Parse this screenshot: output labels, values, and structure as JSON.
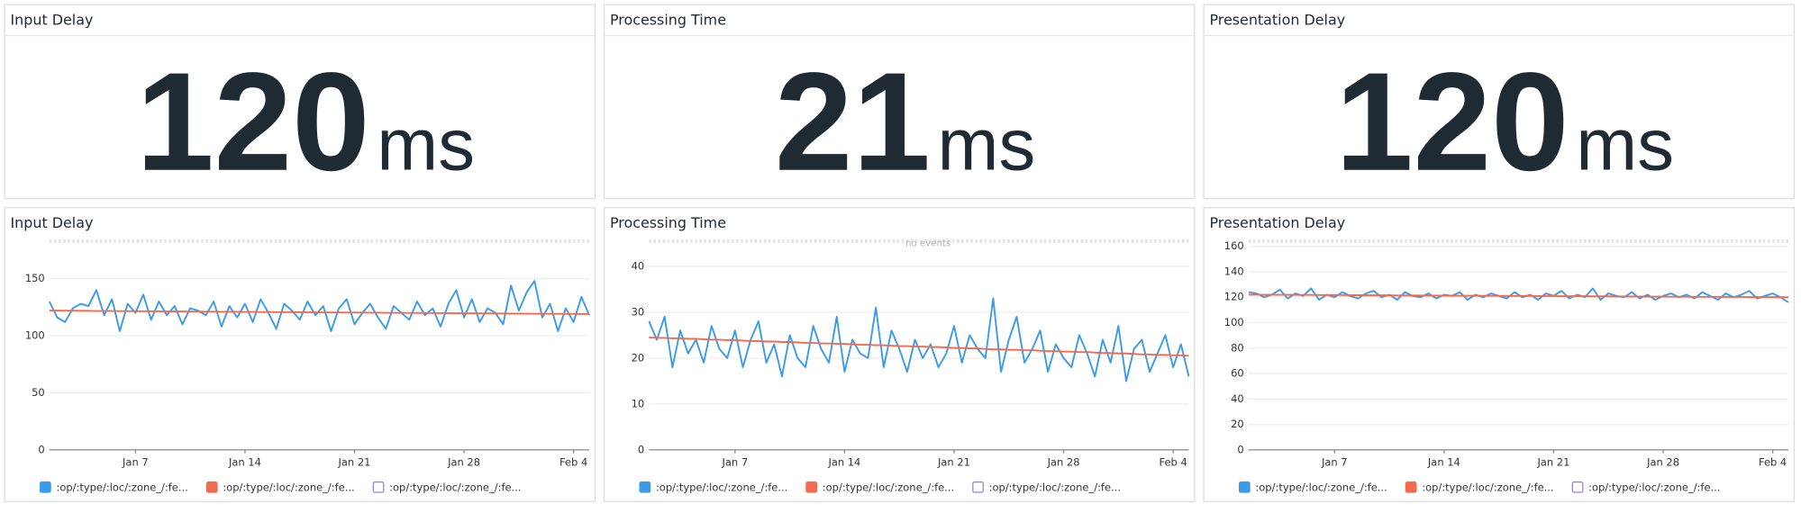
{
  "stat_widgets": [
    {
      "title": "Input Delay",
      "value": 120,
      "unit": "ms"
    },
    {
      "title": "Processing Time",
      "value": 21,
      "unit": "ms"
    },
    {
      "title": "Presentation Delay",
      "value": 120,
      "unit": "ms"
    }
  ],
  "chart_data": [
    {
      "type": "line",
      "title": "Input Delay",
      "categories": [
        null,
        null,
        null,
        null,
        null,
        null,
        null,
        null,
        null,
        null,
        null,
        "Jan 7",
        null,
        null,
        null,
        null,
        null,
        null,
        null,
        null,
        null,
        null,
        null,
        null,
        null,
        "Jan 14",
        null,
        null,
        null,
        null,
        null,
        null,
        null,
        null,
        null,
        null,
        null,
        null,
        null,
        "Jan 21",
        null,
        null,
        null,
        null,
        null,
        null,
        null,
        null,
        null,
        null,
        null,
        null,
        null,
        "Jan 28",
        null,
        null,
        null,
        null,
        null,
        null,
        null,
        null,
        null,
        null,
        null,
        null,
        null,
        "Feb 4",
        null,
        null
      ],
      "ylim": [
        0,
        185
      ],
      "yticks": [
        0,
        50,
        100,
        150
      ],
      "grid": true,
      "series": [
        {
          "name": ":op/:type/:loc/:zone_/:fe...",
          "color": "#3a9be8",
          "values": [
            130,
            116,
            112,
            124,
            128,
            126,
            140,
            118,
            132,
            104,
            128,
            120,
            136,
            114,
            130,
            118,
            126,
            110,
            124,
            122,
            118,
            130,
            108,
            126,
            116,
            128,
            112,
            132,
            120,
            106,
            128,
            122,
            114,
            130,
            118,
            126,
            104,
            124,
            132,
            110,
            120,
            128,
            116,
            106,
            126,
            120,
            114,
            130,
            118,
            124,
            108,
            128,
            140,
            116,
            132,
            112,
            124,
            120,
            110,
            144,
            122,
            138,
            148,
            116,
            128,
            104,
            124,
            112,
            134,
            118
          ]
        },
        {
          "name": ":op/:type/:loc/:zone_/:fe...",
          "color": "#f26b4f",
          "values": [
            122.0,
            122.0,
            121.9,
            121.9,
            121.8,
            121.8,
            121.7,
            121.7,
            121.7,
            121.6,
            121.6,
            121.5,
            121.5,
            121.4,
            121.4,
            121.3,
            121.3,
            121.3,
            121.2,
            121.2,
            121.1,
            121.1,
            121.0,
            121.0,
            121.0,
            120.9,
            120.9,
            120.8,
            120.8,
            120.7,
            120.7,
            120.7,
            120.6,
            120.6,
            120.5,
            120.5,
            120.4,
            120.4,
            120.3,
            120.3,
            120.3,
            120.2,
            120.2,
            120.1,
            120.1,
            120.0,
            120.0,
            120.0,
            119.9,
            119.9,
            119.8,
            119.8,
            119.7,
            119.7,
            119.7,
            119.6,
            119.6,
            119.5,
            119.5,
            119.4,
            119.4,
            119.3,
            119.3,
            119.3,
            119.2,
            119.2,
            119.1,
            119.1,
            119.0,
            119.0
          ]
        },
        {
          "name": ":op/:type/:loc/:zone_/:fe...",
          "color": "#9b7fe0",
          "values": [
            null,
            null,
            null,
            null,
            null,
            null,
            null,
            null,
            null,
            null,
            null,
            null,
            null,
            null,
            null,
            null,
            null,
            null,
            null,
            null,
            null,
            null,
            null,
            null,
            null,
            null,
            null,
            null,
            null,
            null,
            null,
            null,
            null,
            null,
            null,
            null,
            null,
            null,
            null,
            null,
            null,
            null,
            null,
            null,
            null,
            null,
            null,
            null,
            null,
            null,
            null,
            null,
            null,
            null,
            null,
            null,
            null,
            null,
            null,
            null,
            null,
            null,
            null,
            null,
            null,
            null,
            null,
            null,
            null,
            null
          ]
        }
      ]
    },
    {
      "type": "line",
      "title": "Processing Time",
      "annotation": "no events",
      "categories": [
        null,
        null,
        null,
        null,
        null,
        null,
        null,
        null,
        null,
        null,
        null,
        "Jan 7",
        null,
        null,
        null,
        null,
        null,
        null,
        null,
        null,
        null,
        null,
        null,
        null,
        null,
        "Jan 14",
        null,
        null,
        null,
        null,
        null,
        null,
        null,
        null,
        null,
        null,
        null,
        null,
        null,
        "Jan 21",
        null,
        null,
        null,
        null,
        null,
        null,
        null,
        null,
        null,
        null,
        null,
        null,
        null,
        "Jan 28",
        null,
        null,
        null,
        null,
        null,
        null,
        null,
        null,
        null,
        null,
        null,
        null,
        null,
        "Feb 4",
        null,
        null
      ],
      "ylim": [
        0,
        46
      ],
      "yticks": [
        0,
        10,
        20,
        30,
        40
      ],
      "grid": true,
      "series": [
        {
          "name": ":op/:type/:loc/:zone_/:fe...",
          "color": "#3a9be8",
          "values": [
            28,
            24,
            29,
            18,
            26,
            21,
            24,
            19,
            27,
            22,
            20,
            26,
            18,
            24,
            28,
            19,
            23,
            16,
            25,
            20,
            18,
            27,
            22,
            19,
            29,
            17,
            24,
            21,
            20,
            31,
            18,
            26,
            22,
            17,
            24,
            20,
            23,
            18,
            21,
            27,
            19,
            25,
            22,
            20,
            33,
            17,
            24,
            29,
            19,
            22,
            26,
            17,
            23,
            20,
            18,
            25,
            21,
            16,
            24,
            19,
            27,
            15,
            22,
            24,
            17,
            21,
            25,
            18,
            23,
            16
          ]
        },
        {
          "name": ":op/:type/:loc/:zone_/:fe...",
          "color": "#f26b4f",
          "values": [
            24.5,
            24.4,
            24.4,
            24.3,
            24.3,
            24.2,
            24.2,
            24.1,
            24.0,
            24.0,
            23.9,
            23.9,
            23.8,
            23.7,
            23.7,
            23.6,
            23.6,
            23.5,
            23.5,
            23.4,
            23.3,
            23.3,
            23.2,
            23.2,
            23.1,
            23.1,
            23.0,
            22.9,
            22.9,
            22.8,
            22.8,
            22.7,
            22.6,
            22.6,
            22.5,
            22.5,
            22.4,
            22.4,
            22.3,
            22.2,
            22.2,
            22.1,
            22.1,
            22.0,
            21.9,
            21.9,
            21.8,
            21.8,
            21.7,
            21.7,
            21.6,
            21.5,
            21.5,
            21.4,
            21.4,
            21.3,
            21.3,
            21.2,
            21.1,
            21.1,
            21.0,
            21.0,
            20.9,
            20.8,
            20.8,
            20.7,
            20.7,
            20.6,
            20.6,
            20.5
          ]
        },
        {
          "name": ":op/:type/:loc/:zone_/:fe...",
          "color": "#9b7fe0",
          "values": [
            null,
            null,
            null,
            null,
            null,
            null,
            null,
            null,
            null,
            null,
            null,
            null,
            null,
            null,
            null,
            null,
            null,
            null,
            null,
            null,
            null,
            null,
            null,
            null,
            null,
            null,
            null,
            null,
            null,
            null,
            null,
            null,
            null,
            null,
            null,
            null,
            null,
            null,
            null,
            null,
            null,
            null,
            null,
            null,
            null,
            null,
            null,
            null,
            null,
            null,
            null,
            null,
            null,
            null,
            null,
            null,
            null,
            null,
            null,
            null,
            null,
            null,
            null,
            null,
            null,
            null,
            null,
            null,
            null,
            null
          ]
        }
      ]
    },
    {
      "type": "line",
      "title": "Presentation Delay",
      "categories": [
        null,
        null,
        null,
        null,
        null,
        null,
        null,
        null,
        null,
        null,
        null,
        "Jan 7",
        null,
        null,
        null,
        null,
        null,
        null,
        null,
        null,
        null,
        null,
        null,
        null,
        null,
        "Jan 14",
        null,
        null,
        null,
        null,
        null,
        null,
        null,
        null,
        null,
        null,
        null,
        null,
        null,
        "Jan 21",
        null,
        null,
        null,
        null,
        null,
        null,
        null,
        null,
        null,
        null,
        null,
        null,
        null,
        "Jan 28",
        null,
        null,
        null,
        null,
        null,
        null,
        null,
        null,
        null,
        null,
        null,
        null,
        null,
        "Feb 4",
        null,
        null
      ],
      "ylim": [
        0,
        166
      ],
      "yticks": [
        0,
        20,
        40,
        60,
        80,
        100,
        120,
        140,
        160
      ],
      "grid": true,
      "series": [
        {
          "name": ":op/:type/:loc/:zone_/:fe...",
          "color": "#3a9be8",
          "values": [
            124,
            123,
            120,
            122,
            126,
            119,
            123,
            121,
            127,
            118,
            122,
            120,
            124,
            121,
            119,
            123,
            125,
            120,
            122,
            118,
            124,
            121,
            120,
            123,
            119,
            122,
            121,
            124,
            118,
            122,
            120,
            123,
            121,
            119,
            124,
            120,
            122,
            118,
            123,
            121,
            125,
            119,
            122,
            120,
            127,
            118,
            123,
            121,
            120,
            124,
            119,
            122,
            118,
            121,
            123,
            120,
            122,
            119,
            124,
            121,
            118,
            123,
            120,
            122,
            125,
            119,
            121,
            123,
            120,
            116
          ]
        },
        {
          "name": ":op/:type/:loc/:zone_/:fe...",
          "color": "#f26b4f",
          "values": [
            122.0,
            122.0,
            121.9,
            121.9,
            121.9,
            121.9,
            121.8,
            121.8,
            121.8,
            121.7,
            121.7,
            121.7,
            121.7,
            121.6,
            121.6,
            121.6,
            121.5,
            121.5,
            121.5,
            121.4,
            121.4,
            121.4,
            121.4,
            121.3,
            121.3,
            121.3,
            121.2,
            121.2,
            121.2,
            121.2,
            121.1,
            121.1,
            121.1,
            121.0,
            121.0,
            121.0,
            121.0,
            120.9,
            120.9,
            120.9,
            120.8,
            120.8,
            120.8,
            120.8,
            120.7,
            120.7,
            120.7,
            120.6,
            120.6,
            120.6,
            120.6,
            120.5,
            120.5,
            120.5,
            120.4,
            120.4,
            120.4,
            120.3,
            120.3,
            120.3,
            120.3,
            120.2,
            120.2,
            120.2,
            120.1,
            120.1,
            120.1,
            120.1,
            120.0,
            120.0
          ]
        },
        {
          "name": ":op/:type/:loc/:zone_/:fe...",
          "color": "#9b7fe0",
          "values": [
            null,
            null,
            null,
            null,
            null,
            null,
            null,
            null,
            null,
            null,
            null,
            null,
            null,
            null,
            null,
            null,
            null,
            null,
            null,
            null,
            null,
            null,
            null,
            null,
            null,
            null,
            null,
            null,
            null,
            null,
            null,
            null,
            null,
            null,
            null,
            null,
            null,
            null,
            null,
            null,
            null,
            null,
            null,
            null,
            null,
            null,
            null,
            null,
            null,
            null,
            null,
            null,
            null,
            null,
            null,
            null,
            null,
            null,
            null,
            null,
            null,
            null,
            null,
            null,
            null,
            null,
            null,
            null,
            null,
            null
          ]
        }
      ]
    }
  ]
}
